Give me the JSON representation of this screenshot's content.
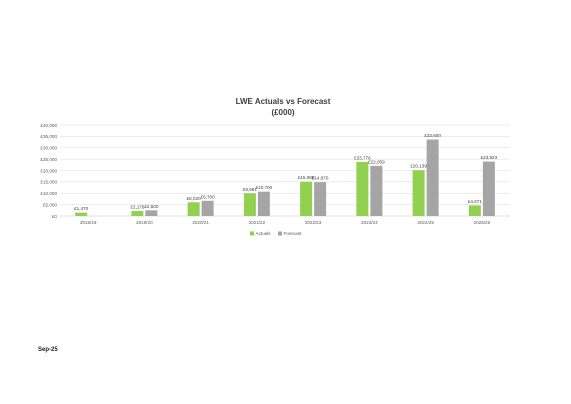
{
  "chart_data": {
    "type": "bar",
    "title": "LWE Actuals vs Forecast",
    "subtitle": "(£000)",
    "categories": [
      "2018/19",
      "2019/20",
      "2020/21",
      "2021/22",
      "2022/23",
      "2023/24",
      "2024/25",
      "2025/26"
    ],
    "series": [
      {
        "name": "Actuals",
        "color": "#92d050",
        "values": [
          1470,
          2176,
          6020,
          9961,
          15080,
          23776,
          20139,
          4671
        ],
        "labels": [
          "£1,470",
          "£2,176",
          "£6,020",
          "£9,961",
          "£15,080",
          "£23,776",
          "£20,139",
          "£4,671"
        ]
      },
      {
        "name": "Forecast",
        "color": "#a5a5a5",
        "values": [
          null,
          2500,
          6700,
          10700,
          14870,
          22059,
          33600,
          23923
        ],
        "labels": [
          "",
          "£2,500",
          "£6,700",
          "£10,700",
          "£14,870",
          "£22,059",
          "£33,600",
          "£23,923"
        ]
      }
    ],
    "ylim": [
      0,
      40000
    ],
    "yticks": [
      0,
      5000,
      10000,
      15000,
      20000,
      25000,
      30000,
      35000,
      40000
    ],
    "ytick_labels": [
      "£0",
      "£5,000",
      "£10,000",
      "£15,000",
      "£20,000",
      "£25,000",
      "£30,000",
      "£35,000",
      "£40,000"
    ],
    "grid": true,
    "legend_position": "bottom"
  },
  "footer": {
    "date": "Sep-25"
  }
}
